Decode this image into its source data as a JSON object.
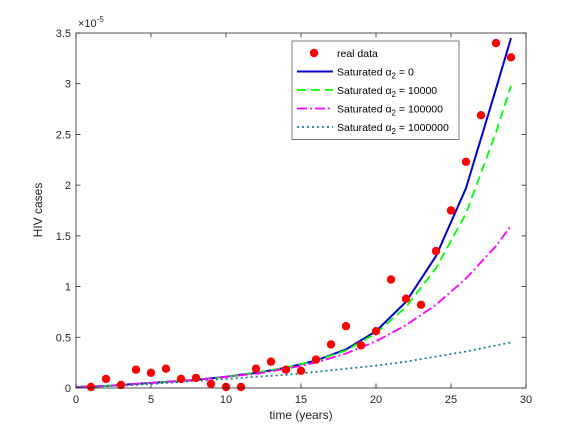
{
  "chart_data": {
    "type": "line",
    "xlabel": "time (years)",
    "ylabel": "HIV cases",
    "xlim": [
      0,
      30
    ],
    "ylim": [
      0,
      3.5
    ],
    "y_exponent_label": "×10",
    "y_exponent_power": "-5",
    "x_ticks": [
      "0",
      "5",
      "10",
      "15",
      "20",
      "25",
      "30"
    ],
    "y_ticks": [
      "0",
      "0.5",
      "1",
      "1.5",
      "2",
      "2.5",
      "3",
      "3.5"
    ],
    "grid": false,
    "legend_placement": "top-right",
    "real_data": {
      "name": "real data",
      "color": "#ff0000",
      "x": [
        1,
        2,
        3,
        4,
        5,
        6,
        7,
        8,
        9,
        10,
        11,
        12,
        13,
        14,
        15,
        16,
        17,
        18,
        19,
        20,
        21,
        22,
        23,
        24,
        25,
        26,
        27,
        28,
        29
      ],
      "y": [
        0.01,
        0.09,
        0.03,
        0.18,
        0.15,
        0.19,
        0.09,
        0.1,
        0.04,
        0.01,
        0.01,
        0.19,
        0.26,
        0.18,
        0.17,
        0.28,
        0.43,
        0.61,
        0.42,
        0.56,
        1.07,
        0.88,
        0.82,
        1.35,
        1.75,
        2.23,
        2.69,
        3.4,
        3.26
      ]
    },
    "series": [
      {
        "name": "Saturated ",
        "alpha_sym": "α",
        "alpha_sub": "2",
        "alpha_val": " = 0",
        "color": "#0000cc",
        "dash": "",
        "x": [
          0,
          2,
          4,
          6,
          8,
          10,
          12,
          14,
          16,
          18,
          20,
          22,
          24,
          26,
          28,
          29
        ],
        "y": [
          0.01,
          0.02,
          0.04,
          0.06,
          0.08,
          0.11,
          0.15,
          0.2,
          0.27,
          0.38,
          0.56,
          0.85,
          1.3,
          1.97,
          2.95,
          3.45
        ]
      },
      {
        "name": "Saturated ",
        "alpha_sym": "α",
        "alpha_sub": "2",
        "alpha_val": " = 10000",
        "color": "#00ff00",
        "dash": "9,5",
        "x": [
          0,
          2,
          4,
          6,
          8,
          10,
          12,
          14,
          16,
          18,
          20,
          22,
          24,
          26,
          28,
          29
        ],
        "y": [
          0.01,
          0.02,
          0.04,
          0.06,
          0.08,
          0.11,
          0.15,
          0.2,
          0.27,
          0.37,
          0.54,
          0.8,
          1.18,
          1.72,
          2.52,
          2.98
        ]
      },
      {
        "name": "Saturated ",
        "alpha_sym": "α",
        "alpha_sub": "2",
        "alpha_val": " = 100000",
        "color": "#ff00ff",
        "dash": "10,3,2,3",
        "x": [
          0,
          2,
          4,
          6,
          8,
          10,
          12,
          14,
          16,
          18,
          20,
          22,
          24,
          26,
          28,
          29
        ],
        "y": [
          0.01,
          0.02,
          0.04,
          0.06,
          0.08,
          0.11,
          0.14,
          0.19,
          0.25,
          0.34,
          0.46,
          0.62,
          0.82,
          1.08,
          1.4,
          1.6
        ]
      },
      {
        "name": "Saturated ",
        "alpha_sym": "α",
        "alpha_sub": "2",
        "alpha_val": " = 1000000",
        "color": "#1f7f8f",
        "dash": "2,3",
        "x": [
          0,
          2,
          4,
          6,
          8,
          10,
          12,
          14,
          16,
          18,
          20,
          22,
          24,
          26,
          28,
          29
        ],
        "y": [
          0.01,
          0.02,
          0.03,
          0.05,
          0.07,
          0.09,
          0.11,
          0.13,
          0.16,
          0.19,
          0.22,
          0.26,
          0.31,
          0.36,
          0.42,
          0.45
        ]
      }
    ]
  }
}
